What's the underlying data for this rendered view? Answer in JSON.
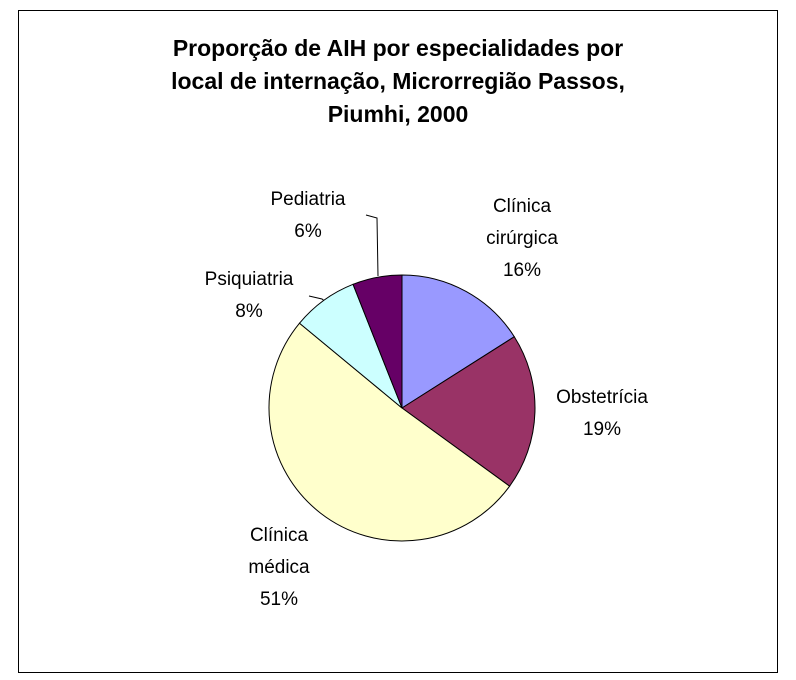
{
  "chart_data": {
    "type": "pie",
    "title": "Proporção de AIH por especialidades por\nlocal de internação, Microrregião Passos,\nPiumhi, 2000",
    "categories": [
      "Clínica\ncirúrgica",
      "Obstetrícia",
      "Clínica\nmédica",
      "Psiquiatria",
      "Pediatria"
    ],
    "values": [
      16,
      19,
      51,
      8,
      6
    ],
    "value_labels": [
      "16%",
      "19%",
      "51%",
      "8%",
      "6%"
    ],
    "colors": [
      "#9999FF",
      "#993366",
      "#FFFFCC",
      "#CCFFFF",
      "#660066"
    ]
  }
}
